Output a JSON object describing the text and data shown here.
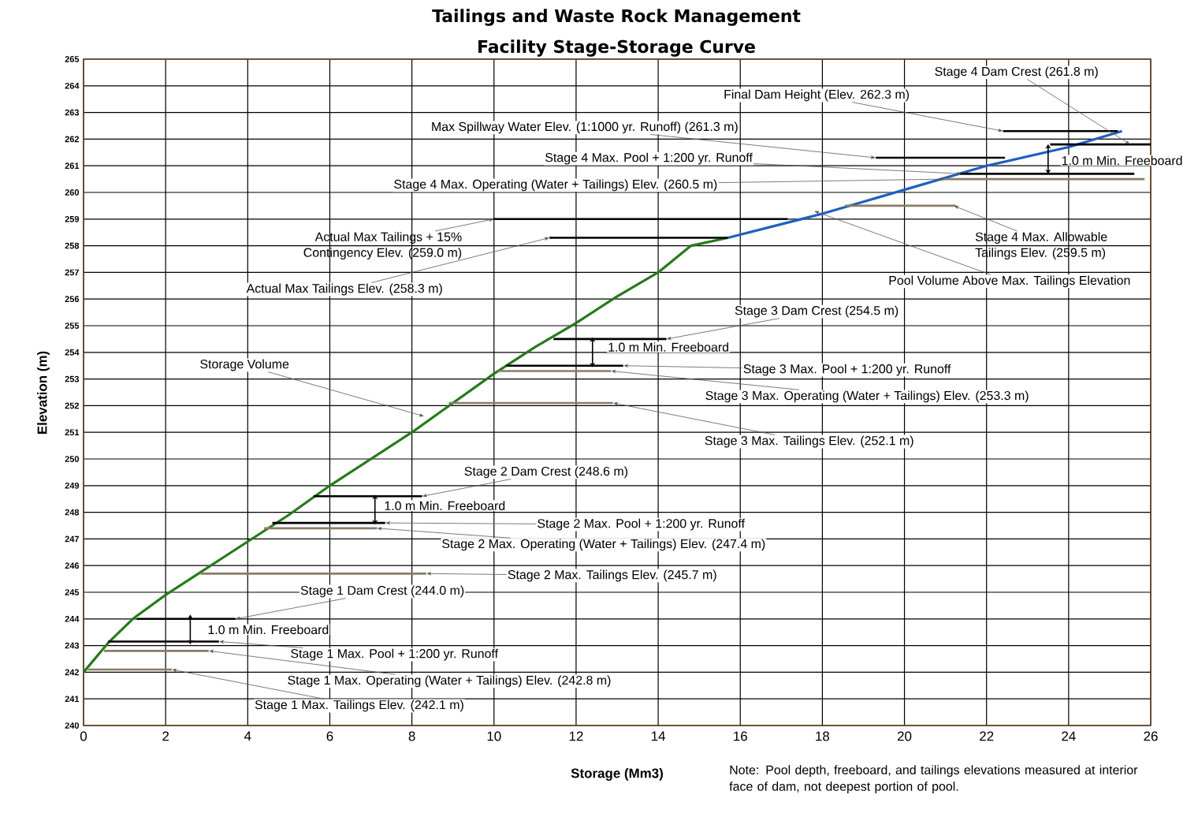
{
  "chart_data": {
    "type": "line",
    "title": "Tailings and Waste Rock Management",
    "subtitle": "Facility Stage-Storage Curve",
    "xlabel": "Storage (Mm3)",
    "ylabel": "Elevation (m)",
    "xlim": [
      0,
      26
    ],
    "ylim": [
      240,
      265
    ],
    "xticks": [
      0,
      2,
      4,
      6,
      8,
      10,
      12,
      14,
      16,
      18,
      20,
      22,
      24,
      26
    ],
    "yticks": [
      240,
      241,
      242,
      243,
      244,
      245,
      246,
      247,
      248,
      249,
      250,
      251,
      252,
      253,
      254,
      255,
      256,
      257,
      258,
      259,
      260,
      261,
      262,
      263,
      264,
      265
    ],
    "grid": true,
    "line_style": "solid",
    "series": [
      {
        "type": "line",
        "color": "#267a1a",
        "x": [
          0,
          0.6,
          1.2,
          2,
          3,
          4,
          5,
          6,
          7,
          8,
          9,
          10,
          11,
          12,
          13,
          14,
          14.8,
          15.7
        ],
        "values": [
          242.0,
          243.1,
          244.0,
          244.9,
          245.9,
          246.9,
          247.9,
          249.0,
          250.0,
          251.0,
          252.1,
          253.2,
          254.2,
          255.1,
          256.1,
          257.0,
          258.0,
          258.3
        ]
      },
      {
        "type": "line",
        "color": "#1f5fbf",
        "x": [
          15.7,
          18,
          20,
          22,
          24,
          25.3
        ],
        "values": [
          258.3,
          259.2,
          260.1,
          261.0,
          261.7,
          262.3
        ]
      },
      {
        "type": "line",
        "color": "#000000",
        "x": [
          1.3,
          3.7
        ],
        "values": [
          244.0,
          244.0
        ]
      },
      {
        "type": "line",
        "color": "#000000",
        "x": [
          0.6,
          3.3
        ],
        "values": [
          243.15,
          243.15
        ]
      },
      {
        "type": "line",
        "color": "#8b7b66",
        "x": [
          0.5,
          3.05
        ],
        "values": [
          242.8,
          242.8
        ]
      },
      {
        "type": "line",
        "color": "#8b7b66",
        "x": [
          0.1,
          2.15
        ],
        "values": [
          242.1,
          242.1
        ]
      },
      {
        "type": "line",
        "color": "#000000",
        "x": [
          5.6,
          8.25
        ],
        "values": [
          248.6,
          248.6
        ]
      },
      {
        "type": "line",
        "color": "#000000",
        "x": [
          4.6,
          7.35
        ],
        "values": [
          247.6,
          247.6
        ]
      },
      {
        "type": "line",
        "color": "#8b7b66",
        "x": [
          4.4,
          7.15
        ],
        "values": [
          247.4,
          247.4
        ]
      },
      {
        "type": "line",
        "color": "#8b7b66",
        "x": [
          2.85,
          8.35
        ],
        "values": [
          245.7,
          245.7
        ]
      },
      {
        "type": "line",
        "color": "#000000",
        "x": [
          11.45,
          14.2
        ],
        "values": [
          254.5,
          254.5
        ]
      },
      {
        "type": "line",
        "color": "#000000",
        "x": [
          10.3,
          13.15
        ],
        "values": [
          253.5,
          253.5
        ]
      },
      {
        "type": "line",
        "color": "#8b7b66",
        "x": [
          10.1,
          12.85
        ],
        "values": [
          253.3,
          253.3
        ]
      },
      {
        "type": "line",
        "color": "#8b7b66",
        "x": [
          8.9,
          12.9
        ],
        "values": [
          252.1,
          252.1
        ]
      },
      {
        "type": "line",
        "color": "#000000",
        "x": [
          10.0,
          17.15
        ],
        "values": [
          259.0,
          259.0
        ]
      },
      {
        "type": "line",
        "color": "#000000",
        "x": [
          11.35,
          15.7
        ],
        "values": [
          258.3,
          258.3
        ]
      },
      {
        "type": "line",
        "color": "#000000",
        "x": [
          22.4,
          25.2
        ],
        "values": [
          262.3,
          262.3
        ]
      },
      {
        "type": "line",
        "color": "#000000",
        "x": [
          23.55,
          26.0
        ],
        "values": [
          261.8,
          261.8
        ]
      },
      {
        "type": "line",
        "color": "#000000",
        "x": [
          19.3,
          22.45
        ],
        "values": [
          261.3,
          261.3
        ]
      },
      {
        "type": "line",
        "color": "#000000",
        "x": [
          21.35,
          25.6
        ],
        "values": [
          260.7,
          260.7
        ]
      },
      {
        "type": "line",
        "color": "#8b7b66",
        "x": [
          20.9,
          25.85
        ],
        "values": [
          260.5,
          260.5
        ]
      },
      {
        "type": "line",
        "color": "#8b7b66",
        "x": [
          18.55,
          21.25
        ],
        "values": [
          259.5,
          259.5
        ]
      }
    ],
    "annotations": [
      {
        "text": "Stage 4 Dam Crest (261.8 m)",
        "x": 25.5,
        "y": 261.8
      },
      {
        "text": "Final Dam Height (Elev. 262.3 m)",
        "x": 22.4,
        "y": 262.3
      },
      {
        "text": "Max Spillway Water Elev. (1:1000 yr. Runoff) (261.3 m)",
        "x": 19.3,
        "y": 261.3
      },
      {
        "text": "Stage 4 Max. Pool + 1:200 yr. Runoff",
        "x": 21.4,
        "y": 260.7
      },
      {
        "text": "Stage 4 Max. Operating (Water + Tailings) Elev. (260.5 m)",
        "x": 21.0,
        "y": 260.5
      },
      "1.0 m Min. Freeboard",
      {
        "text": "Stage 4 Max. Allowable Tailings Elev. (259.5 m)",
        "x": 21.2,
        "y": 259.5
      },
      {
        "text": "Pool Volume Above Max. Tailings Elevation",
        "x": 17.8,
        "y": 259.3
      },
      {
        "text": "Actual Max Tailings + 15% Contingency Elev. (259.0 m)",
        "x": 10.0,
        "y": 259.0
      },
      {
        "text": "Actual Max Tailings Elev. (258.3 m)",
        "x": 11.35,
        "y": 258.3
      },
      {
        "text": "Stage 3 Dam Crest (254.5 m)",
        "x": 14.2,
        "y": 254.5
      },
      "1.0 m Min. Freeboard",
      {
        "text": "Stage 3 Max. Pool + 1:200 yr. Runoff",
        "x": 13.15,
        "y": 253.5
      },
      {
        "text": "Stage 3 Max. Operating (Water + Tailings) Elev. (253.3 m)",
        "x": 12.85,
        "y": 253.3
      },
      {
        "text": "Stage 3 Max. Tailings Elev. (252.1 m)",
        "x": 12.9,
        "y": 252.1
      },
      "Storage Volume",
      {
        "text": "Stage 2 Dam Crest (248.6 m)",
        "x": 8.25,
        "y": 248.6
      },
      "1.0 m Min. Freeboard",
      {
        "text": "Stage 2 Max. Pool + 1:200 yr. Runoff",
        "x": 7.35,
        "y": 247.6
      },
      {
        "text": "Stage 2 Max. Operating (Water + Tailings) Elev. (247.4 m)",
        "x": 7.15,
        "y": 247.4
      },
      {
        "text": "Stage 2 Max. Tailings Elev. (245.7 m)",
        "x": 8.35,
        "y": 245.7
      },
      {
        "text": "Stage 1 Dam Crest (244.0 m)",
        "x": 3.7,
        "y": 244.0
      },
      "1.0 m Min. Freeboard",
      {
        "text": "Stage 1 Max. Pool + 1:200 yr. Runoff",
        "x": 3.3,
        "y": 243.15
      },
      {
        "text": "Stage 1 Max. Operating (Water + Tailings) Elev. (242.8 m)",
        "x": 3.05,
        "y": 242.8
      },
      {
        "text": "Stage 1 Max. Tailings Elev. (242.1 m)",
        "x": 2.15,
        "y": 242.1
      },
      "Note: Pool depth, freeboard, and tailings elevations measured at interior face of dam, not deepest portion of pool."
    ]
  }
}
